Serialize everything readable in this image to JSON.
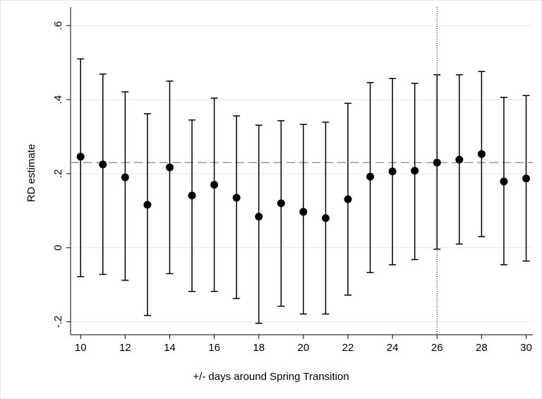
{
  "chart_data": {
    "type": "errorbar",
    "xlabel": "+/- days around Spring Transition",
    "ylabel": "RD estimate",
    "xlim": [
      9.55,
      30.3
    ],
    "ylim": [
      -0.235,
      0.65
    ],
    "xticks": [
      10,
      12,
      14,
      16,
      18,
      20,
      22,
      24,
      26,
      28,
      30
    ],
    "yticks": [
      {
        "value": -0.2,
        "label": "-.2"
      },
      0,
      {
        "value": 0.2,
        "label": ".2"
      },
      {
        "value": 0.4,
        "label": ".4"
      },
      {
        "value": 0.6,
        "label": ".6"
      }
    ],
    "grid": true,
    "hline": 0.23,
    "vline": 26,
    "series": [
      {
        "color": "#000000",
        "x": [
          10,
          11,
          12,
          13,
          14,
          15,
          16,
          17,
          18,
          19,
          20,
          21,
          22,
          23,
          24,
          25,
          26,
          27,
          28,
          29,
          30
        ],
        "values": [
          0.246,
          0.225,
          0.19,
          0.116,
          0.217,
          0.141,
          0.17,
          0.135,
          0.084,
          0.12,
          0.097,
          0.08,
          0.131,
          0.192,
          0.206,
          0.208,
          0.23,
          0.238,
          0.253,
          0.179,
          0.187
        ],
        "upper": [
          0.51,
          0.469,
          0.421,
          0.362,
          0.45,
          0.345,
          0.404,
          0.356,
          0.331,
          0.343,
          0.333,
          0.339,
          0.39,
          0.446,
          0.457,
          0.444,
          0.467,
          0.467,
          0.476,
          0.406,
          0.411
        ],
        "lower": [
          -0.078,
          -0.072,
          -0.088,
          -0.183,
          -0.07,
          -0.118,
          -0.118,
          -0.137,
          -0.204,
          -0.158,
          -0.179,
          -0.179,
          -0.128,
          -0.067,
          -0.046,
          -0.032,
          -0.004,
          0.01,
          0.03,
          -0.046,
          -0.036
        ]
      }
    ]
  }
}
